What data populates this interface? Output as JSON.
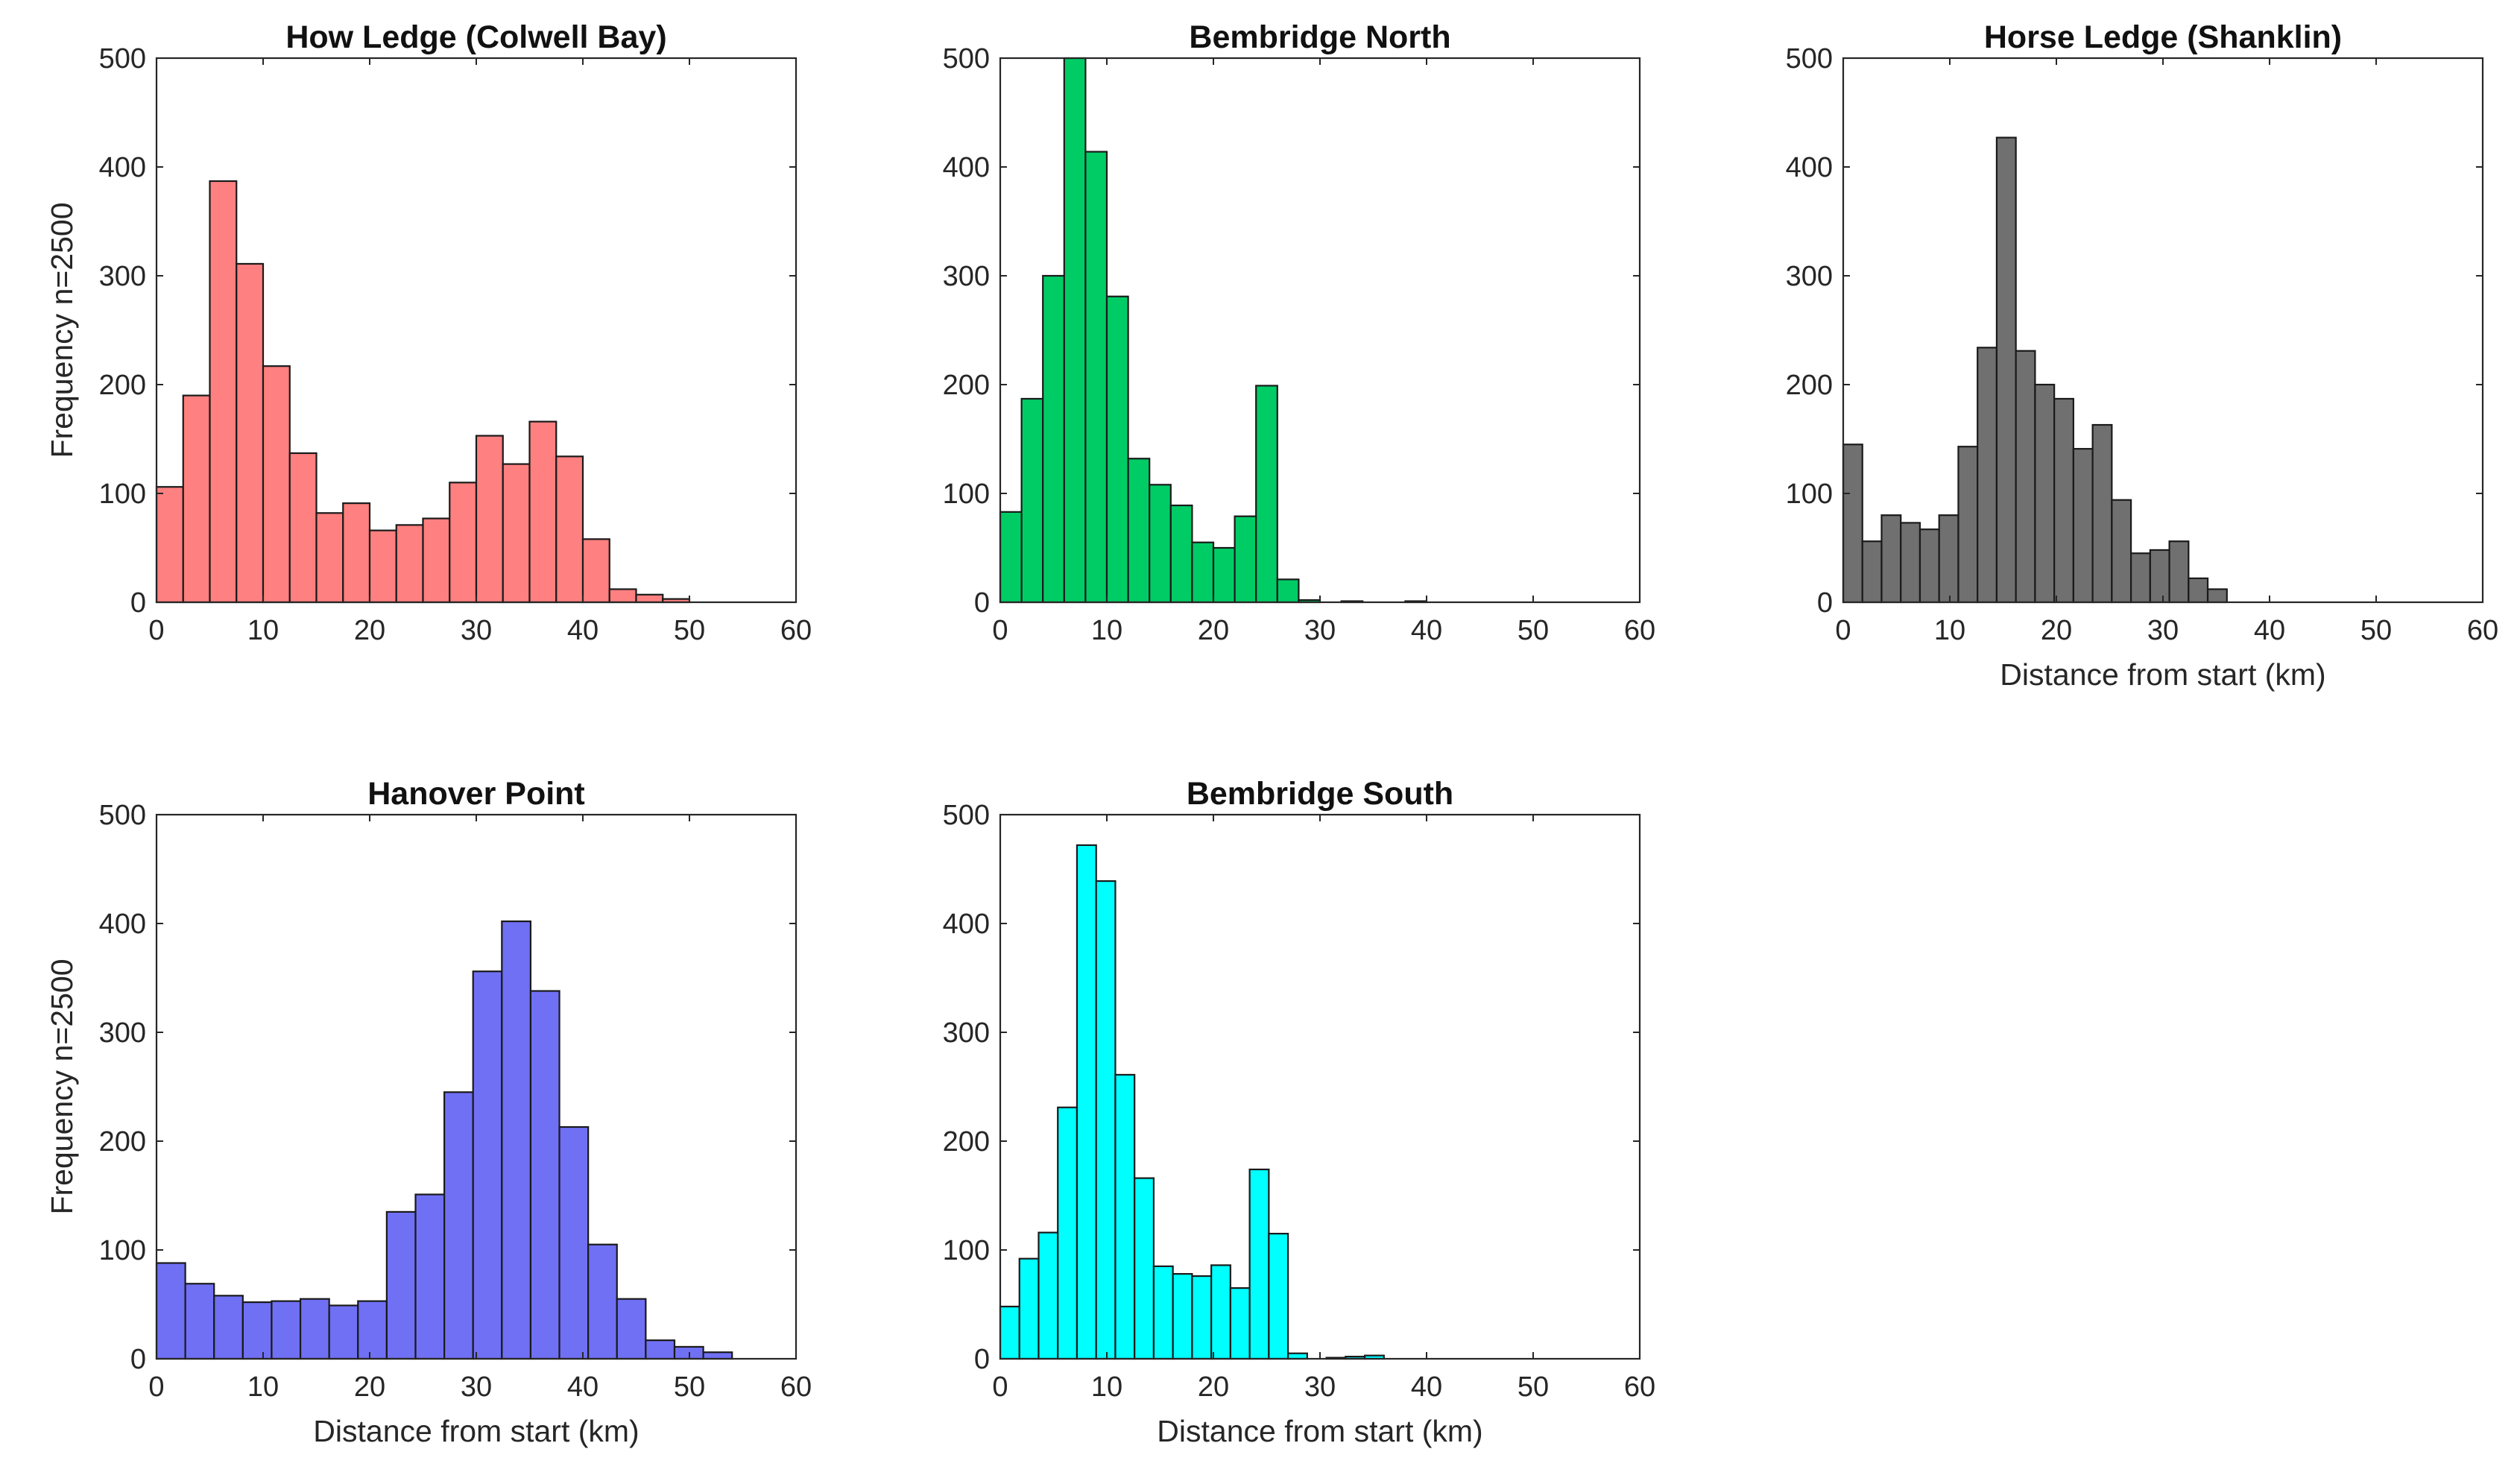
{
  "chart_data": [
    {
      "type": "bar",
      "title": "How Ledge (Colwell Bay)",
      "xlabel": "",
      "ylabel": "Frequency n=2500",
      "color": "#FF8080",
      "xlim": [
        0,
        60
      ],
      "ylim": [
        0,
        500
      ],
      "xticks": [
        "0",
        "10",
        "20",
        "30",
        "40",
        "50",
        "60"
      ],
      "yticks": [
        "0",
        "100",
        "200",
        "300",
        "400",
        "500"
      ],
      "bin_start": 0,
      "bin_width": 2.5,
      "values": [
        106,
        190,
        387,
        311,
        217,
        137,
        82,
        91,
        66,
        71,
        77,
        110,
        153,
        127,
        166,
        134,
        58,
        12,
        7,
        3,
        0,
        0,
        0,
        0
      ]
    },
    {
      "type": "bar",
      "title": "Bembridge North",
      "xlabel": "",
      "ylabel": "",
      "color": "#00CC66",
      "xlim": [
        0,
        60
      ],
      "ylim": [
        0,
        500
      ],
      "xticks": [
        "0",
        "10",
        "20",
        "30",
        "40",
        "50",
        "60"
      ],
      "yticks": [
        "0",
        "100",
        "200",
        "300",
        "400",
        "500"
      ],
      "bin_start": 0,
      "bin_width": 2,
      "values": [
        83,
        187,
        300,
        500,
        414,
        281,
        132,
        108,
        89,
        55,
        50,
        79,
        199,
        21,
        2,
        0,
        1,
        0,
        0,
        1,
        0,
        0,
        0,
        0,
        0,
        0,
        0,
        0,
        0,
        0
      ]
    },
    {
      "type": "bar",
      "title": "Horse Ledge (Shanklin)",
      "xlabel": "Distance from start (km)",
      "ylabel": "",
      "color": "#707070",
      "xlim": [
        0,
        60
      ],
      "ylim": [
        0,
        500
      ],
      "xticks": [
        "0",
        "10",
        "20",
        "30",
        "40",
        "50",
        "60"
      ],
      "yticks": [
        "0",
        "100",
        "200",
        "300",
        "400",
        "500"
      ],
      "bin_start": 0,
      "bin_width": 1.8,
      "values": [
        145,
        56,
        80,
        73,
        67,
        80,
        143,
        234,
        427,
        231,
        200,
        187,
        141,
        163,
        94,
        45,
        48,
        56,
        22,
        12
      ]
    },
    {
      "type": "bar",
      "title": "Hanover Point",
      "xlabel": "Distance from start (km)",
      "ylabel": "Frequency n=2500",
      "color": "#7070F5",
      "xlim": [
        0,
        60
      ],
      "ylim": [
        0,
        500
      ],
      "xticks": [
        "0",
        "10",
        "20",
        "30",
        "40",
        "50",
        "60"
      ],
      "yticks": [
        "0",
        "100",
        "200",
        "300",
        "400",
        "500"
      ],
      "bin_start": 0,
      "bin_width": 2.7,
      "values": [
        88,
        69,
        58,
        52,
        53,
        55,
        49,
        53,
        135,
        151,
        245,
        356,
        402,
        338,
        213,
        105,
        55,
        17,
        11,
        6
      ]
    },
    {
      "type": "bar",
      "title": "Bembridge South",
      "xlabel": "Distance from start (km)",
      "ylabel": "",
      "color": "#00FFFF",
      "xlim": [
        0,
        60
      ],
      "ylim": [
        0,
        500
      ],
      "xticks": [
        "0",
        "10",
        "20",
        "30",
        "40",
        "50",
        "60"
      ],
      "yticks": [
        "0",
        "100",
        "200",
        "300",
        "400",
        "500"
      ],
      "bin_start": 0,
      "bin_width": 1.8,
      "values": [
        48,
        92,
        116,
        231,
        472,
        439,
        261,
        166,
        85,
        78,
        76,
        86,
        65,
        174,
        115,
        5,
        0,
        1,
        2,
        3
      ]
    }
  ]
}
